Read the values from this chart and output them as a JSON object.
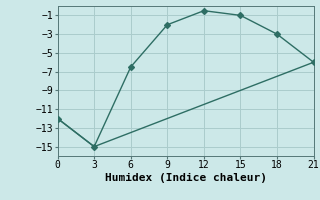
{
  "xlabel": "Humidex (Indice chaleur)",
  "background_color": "#cce8e8",
  "line_color": "#2e6e64",
  "grid_color": "#aacccc",
  "line1_x": [
    0,
    3,
    6,
    9,
    12,
    15,
    18,
    21
  ],
  "line1_y": [
    -12,
    -15,
    -6.5,
    -2,
    -0.5,
    -1,
    -3,
    -6
  ],
  "line2_x": [
    0,
    3,
    21
  ],
  "line2_y": [
    -12,
    -15,
    -6
  ],
  "xlim": [
    0,
    21
  ],
  "ylim": [
    -16,
    0
  ],
  "xticks": [
    0,
    3,
    6,
    9,
    12,
    15,
    18,
    21
  ],
  "yticks": [
    -15,
    -13,
    -11,
    -9,
    -7,
    -5,
    -3,
    -1
  ],
  "marker": "D",
  "markersize": 3,
  "linewidth": 1.0,
  "font_family": "monospace",
  "xlabel_fontsize": 8,
  "tick_fontsize": 7
}
